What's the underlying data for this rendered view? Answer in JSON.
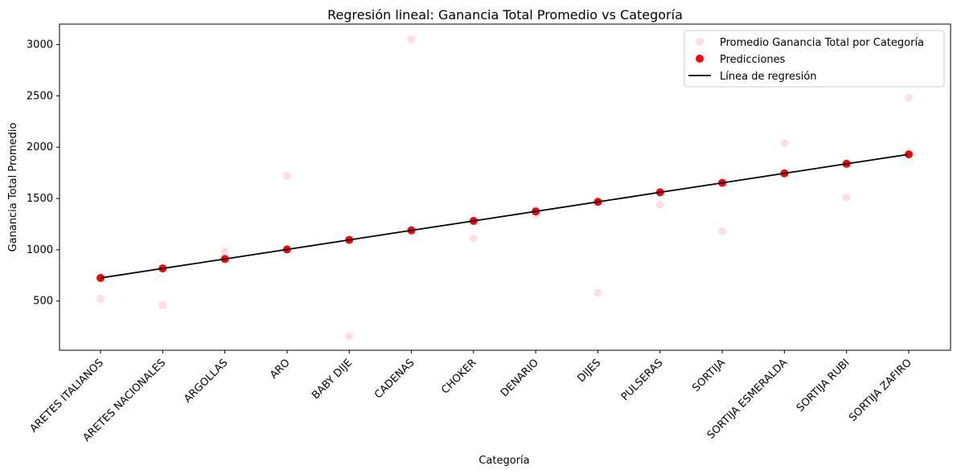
{
  "chart_data": {
    "type": "scatter",
    "title": "Regresión lineal: Ganancia Total Promedio vs Categoría",
    "xlabel": "Categoría",
    "ylabel": "Ganancia Total Promedio",
    "categories": [
      "ARETES ITALIANOS",
      "ARETES NACIONALES",
      "ARGOLLAS",
      "ARO",
      "BABY DIJE",
      "CADENAS",
      "CHOKER",
      "DENARIO",
      "DIJES",
      "PULSERAS",
      "SORTIJA",
      "SORTIJA ESMERALDA",
      "SORTIJA RUBI",
      "SORTIJA ZAFIRO"
    ],
    "ylim": [
      20,
      3200
    ],
    "yticks": [
      500,
      1000,
      1500,
      2000,
      2500,
      3000
    ],
    "series": [
      {
        "name": "Promedio Ganancia Total por Categoría",
        "kind": "scatter",
        "color": "#ffc0cb",
        "opacity": 0.5,
        "values": [
          520,
          460,
          980,
          1720,
          160,
          3050,
          1110,
          1340,
          580,
          1440,
          1180,
          2040,
          1510,
          2480
        ]
      },
      {
        "name": "Predicciones",
        "kind": "scatter",
        "color": "#ff0000",
        "values": [
          725,
          818,
          910,
          1003,
          1096,
          1189,
          1281,
          1374,
          1467,
          1560,
          1652,
          1745,
          1838,
          1930
        ]
      },
      {
        "name": "Línea de regresión",
        "kind": "line",
        "color": "#000000",
        "values": [
          725,
          818,
          910,
          1003,
          1096,
          1189,
          1281,
          1374,
          1467,
          1560,
          1652,
          1745,
          1838,
          1930
        ]
      }
    ],
    "legend_position": "top-right",
    "grid": false
  }
}
